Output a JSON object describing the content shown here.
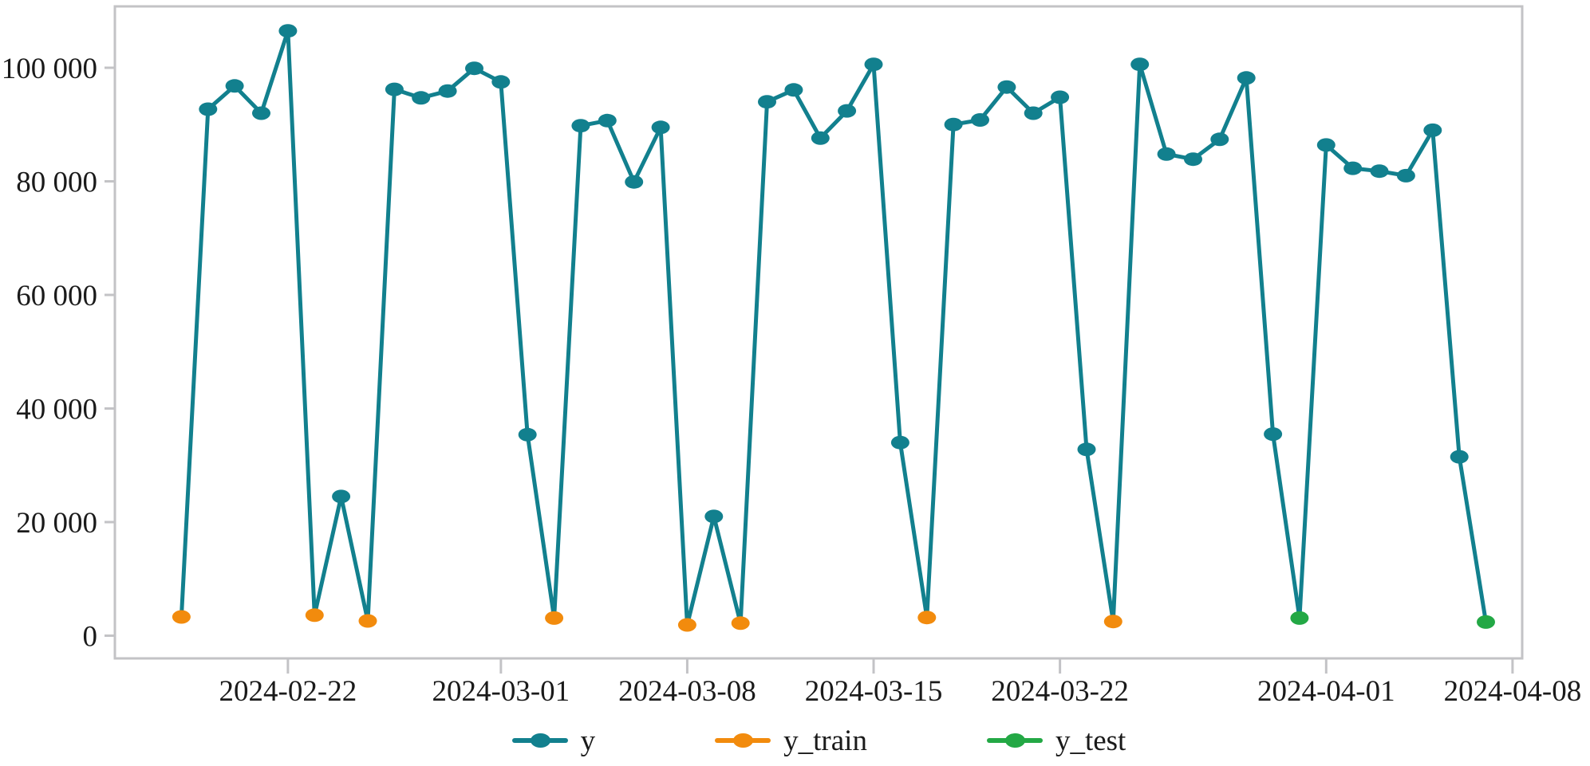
{
  "chart_data": {
    "type": "line",
    "title": "",
    "grid": false,
    "legend_position": "bottom",
    "x_axis": {
      "tick_labels": [
        "2024-02-22",
        "2024-03-01",
        "2024-03-08",
        "2024-03-15",
        "2024-03-22",
        "2024-04-01",
        "2024-04-08"
      ]
    },
    "y_axis": {
      "tick_labels": [
        "0",
        "20 000",
        "40 000",
        "60 000",
        "80 000",
        "100 000"
      ],
      "tick_values": [
        0,
        20000,
        40000,
        60000,
        80000,
        100000
      ],
      "range": [
        0,
        110000
      ]
    },
    "series": [
      {
        "name": "y",
        "color": "#12808E"
      },
      {
        "name": "y_train",
        "color": "#F28B0D"
      },
      {
        "name": "y_test",
        "color": "#23A845"
      }
    ],
    "points": [
      {
        "date": "2024-02-18",
        "value": 3300,
        "set": "y_train"
      },
      {
        "date": "2024-02-19",
        "value": 92700,
        "set": "y"
      },
      {
        "date": "2024-02-20",
        "value": 96800,
        "set": "y"
      },
      {
        "date": "2024-02-21",
        "value": 92000,
        "set": "y"
      },
      {
        "date": "2024-02-22",
        "value": 106500,
        "set": "y"
      },
      {
        "date": "2024-02-23",
        "value": 3600,
        "set": "y_train"
      },
      {
        "date": "2024-02-24",
        "value": 24500,
        "set": "y"
      },
      {
        "date": "2024-02-25",
        "value": 2600,
        "set": "y_train"
      },
      {
        "date": "2024-02-26",
        "value": 96200,
        "set": "y"
      },
      {
        "date": "2024-02-27",
        "value": 94700,
        "set": "y"
      },
      {
        "date": "2024-02-28",
        "value": 95900,
        "set": "y"
      },
      {
        "date": "2024-02-29",
        "value": 99900,
        "set": "y"
      },
      {
        "date": "2024-03-01",
        "value": 97500,
        "set": "y"
      },
      {
        "date": "2024-03-02",
        "value": 35400,
        "set": "y"
      },
      {
        "date": "2024-03-03",
        "value": 3100,
        "set": "y_train"
      },
      {
        "date": "2024-03-04",
        "value": 89800,
        "set": "y"
      },
      {
        "date": "2024-03-05",
        "value": 90700,
        "set": "y"
      },
      {
        "date": "2024-03-06",
        "value": 79900,
        "set": "y"
      },
      {
        "date": "2024-03-07",
        "value": 89500,
        "set": "y"
      },
      {
        "date": "2024-03-08",
        "value": 1900,
        "set": "y_train"
      },
      {
        "date": "2024-03-09",
        "value": 21000,
        "set": "y"
      },
      {
        "date": "2024-03-10",
        "value": 2200,
        "set": "y_train"
      },
      {
        "date": "2024-03-11",
        "value": 94000,
        "set": "y"
      },
      {
        "date": "2024-03-12",
        "value": 96100,
        "set": "y"
      },
      {
        "date": "2024-03-13",
        "value": 87600,
        "set": "y"
      },
      {
        "date": "2024-03-14",
        "value": 92400,
        "set": "y"
      },
      {
        "date": "2024-03-15",
        "value": 100600,
        "set": "y"
      },
      {
        "date": "2024-03-16",
        "value": 34000,
        "set": "y"
      },
      {
        "date": "2024-03-17",
        "value": 3200,
        "set": "y_train"
      },
      {
        "date": "2024-03-18",
        "value": 90000,
        "set": "y"
      },
      {
        "date": "2024-03-19",
        "value": 90800,
        "set": "y"
      },
      {
        "date": "2024-03-20",
        "value": 96600,
        "set": "y"
      },
      {
        "date": "2024-03-21",
        "value": 92000,
        "set": "y"
      },
      {
        "date": "2024-03-22",
        "value": 94800,
        "set": "y"
      },
      {
        "date": "2024-03-23",
        "value": 32800,
        "set": "y"
      },
      {
        "date": "2024-03-24",
        "value": 2500,
        "set": "y_train"
      },
      {
        "date": "2024-03-25",
        "value": 100600,
        "set": "y"
      },
      {
        "date": "2024-03-26",
        "value": 84800,
        "set": "y"
      },
      {
        "date": "2024-03-27",
        "value": 83900,
        "set": "y"
      },
      {
        "date": "2024-03-28",
        "value": 87400,
        "set": "y"
      },
      {
        "date": "2024-03-29",
        "value": 98200,
        "set": "y"
      },
      {
        "date": "2024-03-30",
        "value": 35500,
        "set": "y"
      },
      {
        "date": "2024-03-31",
        "value": 3100,
        "set": "y_test"
      },
      {
        "date": "2024-04-01",
        "value": 86400,
        "set": "y"
      },
      {
        "date": "2024-04-02",
        "value": 82300,
        "set": "y"
      },
      {
        "date": "2024-04-03",
        "value": 81800,
        "set": "y"
      },
      {
        "date": "2024-04-04",
        "value": 81000,
        "set": "y"
      },
      {
        "date": "2024-04-05",
        "value": 89000,
        "set": "y"
      },
      {
        "date": "2024-04-06",
        "value": 31500,
        "set": "y"
      },
      {
        "date": "2024-04-07",
        "value": 2400,
        "set": "y_test"
      }
    ]
  },
  "legend": {
    "items": [
      {
        "label": "y",
        "color": "#12808E"
      },
      {
        "label": "y_train",
        "color": "#F28B0D"
      },
      {
        "label": "y_test",
        "color": "#23A845"
      }
    ]
  },
  "colors": {
    "frame": "#C3C3C6",
    "text": "#1A1A1A",
    "background": "#FFFFFF"
  }
}
